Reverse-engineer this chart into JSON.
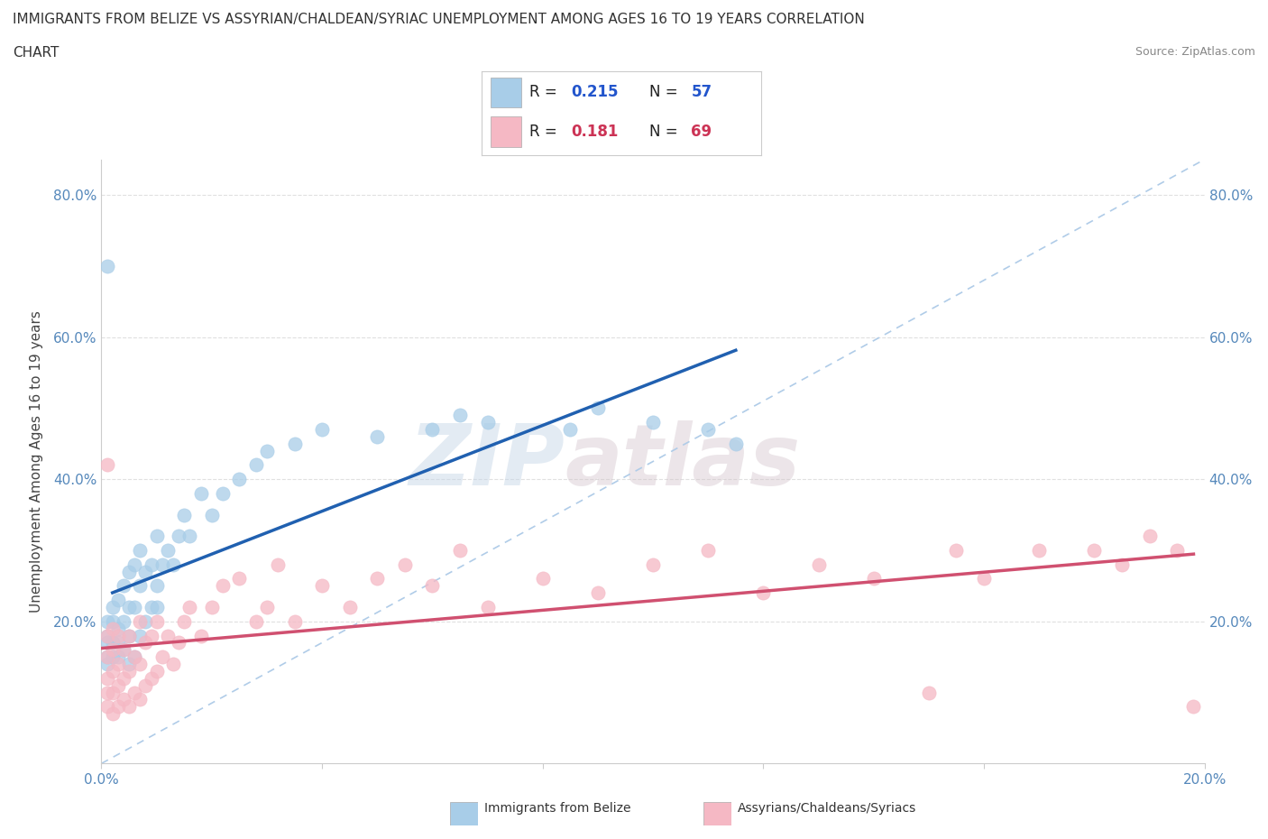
{
  "title_line1": "IMMIGRANTS FROM BELIZE VS ASSYRIAN/CHALDEAN/SYRIAC UNEMPLOYMENT AMONG AGES 16 TO 19 YEARS CORRELATION",
  "title_line2": "CHART",
  "source_text": "Source: ZipAtlas.com",
  "ylabel": "Unemployment Among Ages 16 to 19 years",
  "xlim": [
    0.0,
    0.2
  ],
  "ylim": [
    0.0,
    0.85
  ],
  "background_color": "#ffffff",
  "grid_color": "#e0e0e0",
  "watermark_zip": "ZIP",
  "watermark_atlas": "atlas",
  "legend_r1": "R = ",
  "legend_v1": "0.215",
  "legend_n1_label": "N = ",
  "legend_n1": "57",
  "legend_r2": "R = ",
  "legend_v2": "0.181",
  "legend_n2_label": "N = ",
  "legend_n2": "69",
  "color_belize": "#a8cde8",
  "color_assyrian": "#f5b8c4",
  "trend_color_belize": "#2060b0",
  "trend_color_assyrian": "#d05070",
  "diagonal_color": "#b0cce8",
  "tick_color": "#5588bb",
  "legend_label1": "Immigrants from Belize",
  "legend_label2": "Assyrians/Chaldeans/Syriacs",
  "belize_x": [
    0.001,
    0.001,
    0.001,
    0.001,
    0.001,
    0.002,
    0.002,
    0.002,
    0.002,
    0.003,
    0.003,
    0.003,
    0.003,
    0.004,
    0.004,
    0.004,
    0.005,
    0.005,
    0.005,
    0.005,
    0.006,
    0.006,
    0.006,
    0.007,
    0.007,
    0.007,
    0.008,
    0.008,
    0.009,
    0.009,
    0.01,
    0.01,
    0.01,
    0.011,
    0.012,
    0.013,
    0.014,
    0.015,
    0.016,
    0.018,
    0.02,
    0.022,
    0.025,
    0.028,
    0.03,
    0.035,
    0.04,
    0.05,
    0.06,
    0.065,
    0.07,
    0.085,
    0.09,
    0.1,
    0.11,
    0.115,
    0.001
  ],
  "belize_y": [
    0.14,
    0.15,
    0.17,
    0.18,
    0.2,
    0.15,
    0.17,
    0.2,
    0.22,
    0.15,
    0.17,
    0.19,
    0.23,
    0.16,
    0.2,
    0.25,
    0.14,
    0.18,
    0.22,
    0.27,
    0.15,
    0.22,
    0.28,
    0.18,
    0.25,
    0.3,
    0.2,
    0.27,
    0.22,
    0.28,
    0.22,
    0.25,
    0.32,
    0.28,
    0.3,
    0.28,
    0.32,
    0.35,
    0.32,
    0.38,
    0.35,
    0.38,
    0.4,
    0.42,
    0.44,
    0.45,
    0.47,
    0.46,
    0.47,
    0.49,
    0.48,
    0.47,
    0.5,
    0.48,
    0.47,
    0.45,
    0.7
  ],
  "assyrian_x": [
    0.001,
    0.001,
    0.001,
    0.001,
    0.001,
    0.002,
    0.002,
    0.002,
    0.002,
    0.002,
    0.003,
    0.003,
    0.003,
    0.003,
    0.004,
    0.004,
    0.004,
    0.005,
    0.005,
    0.005,
    0.006,
    0.006,
    0.007,
    0.007,
    0.007,
    0.008,
    0.008,
    0.009,
    0.009,
    0.01,
    0.01,
    0.011,
    0.012,
    0.013,
    0.014,
    0.015,
    0.016,
    0.018,
    0.02,
    0.022,
    0.025,
    0.028,
    0.03,
    0.032,
    0.035,
    0.04,
    0.045,
    0.05,
    0.055,
    0.06,
    0.065,
    0.07,
    0.08,
    0.09,
    0.1,
    0.11,
    0.12,
    0.13,
    0.14,
    0.15,
    0.155,
    0.16,
    0.17,
    0.18,
    0.185,
    0.19,
    0.195,
    0.198,
    0.001
  ],
  "assyrian_y": [
    0.08,
    0.1,
    0.12,
    0.15,
    0.18,
    0.07,
    0.1,
    0.13,
    0.16,
    0.19,
    0.08,
    0.11,
    0.14,
    0.18,
    0.09,
    0.12,
    0.16,
    0.08,
    0.13,
    0.18,
    0.1,
    0.15,
    0.09,
    0.14,
    0.2,
    0.11,
    0.17,
    0.12,
    0.18,
    0.13,
    0.2,
    0.15,
    0.18,
    0.14,
    0.17,
    0.2,
    0.22,
    0.18,
    0.22,
    0.25,
    0.26,
    0.2,
    0.22,
    0.28,
    0.2,
    0.25,
    0.22,
    0.26,
    0.28,
    0.25,
    0.3,
    0.22,
    0.26,
    0.24,
    0.28,
    0.3,
    0.24,
    0.28,
    0.26,
    0.1,
    0.3,
    0.26,
    0.3,
    0.3,
    0.28,
    0.32,
    0.3,
    0.08,
    0.42
  ]
}
